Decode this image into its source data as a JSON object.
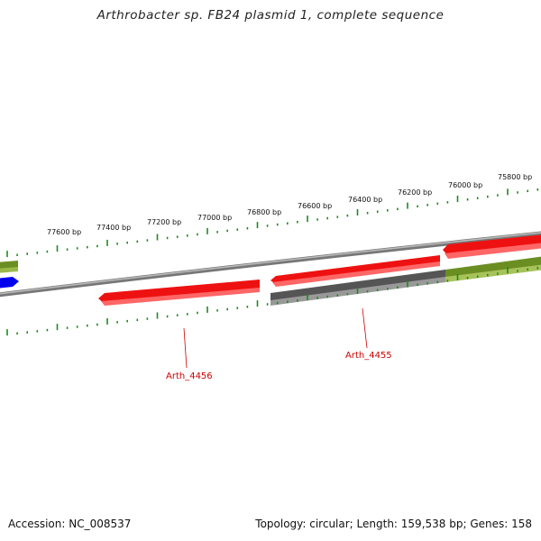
{
  "title": "Arthrobacter sp. FB24 plasmid 1, complete sequence",
  "footer": {
    "accession": "Accession: NC_008537",
    "topology": "Topology: circular; Length: 159,538 bp; Genes: 158"
  },
  "ruler": {
    "labels": [
      "77600 bp",
      "77400 bp",
      "77200 bp",
      "77000 bp",
      "76800 bp",
      "76600 bp",
      "76400 bp",
      "76200 bp",
      "76000 bp",
      "75800 bp"
    ]
  },
  "genes": [
    {
      "name": "Arth_4456",
      "label": "Arth_4456",
      "color": "#ee1111"
    },
    {
      "name": "Arth_4455",
      "label": "Arth_4455",
      "color": "#666666"
    }
  ],
  "colors": {
    "cds_red": "#ee1111",
    "cds_red_shade": "#ff7777",
    "cds_gray": "#666666",
    "cds_olive": "#6b8e23",
    "cds_blue": "#0000ee",
    "backbone": "#888888",
    "tick": "#1e8a1e",
    "label": "#cc0000"
  }
}
